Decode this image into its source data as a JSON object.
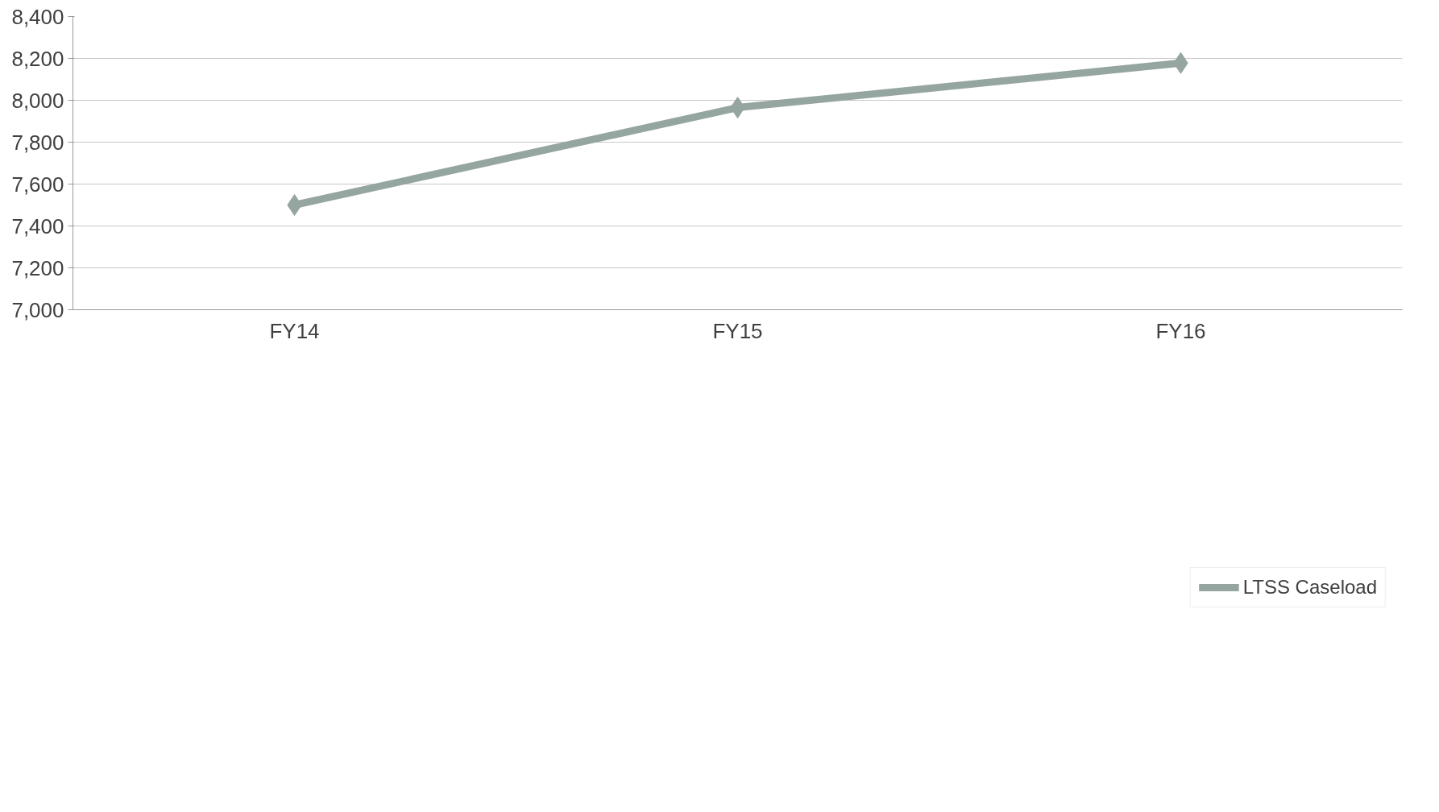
{
  "chart_data": {
    "type": "line",
    "categories": [
      "FY14",
      "FY15",
      "FY16"
    ],
    "series": [
      {
        "name": "LTSS Caseload",
        "color": "#95a5a0",
        "values": [
          7500,
          7965,
          8178
        ]
      }
    ],
    "ylim": [
      7000,
      8400
    ],
    "yticks": [
      {
        "value": 7000,
        "label": "7,000"
      },
      {
        "value": 7200,
        "label": "7,200"
      },
      {
        "value": 7400,
        "label": "7,400"
      },
      {
        "value": 7600,
        "label": "7,600"
      },
      {
        "value": 7800,
        "label": "7,800"
      },
      {
        "value": 8000,
        "label": "8,000"
      },
      {
        "value": 8200,
        "label": "8,200"
      },
      {
        "value": 8400,
        "label": "8,400"
      }
    ],
    "grid": "y",
    "legend": "bottom",
    "marker": "diamond",
    "line_style": "solid"
  }
}
